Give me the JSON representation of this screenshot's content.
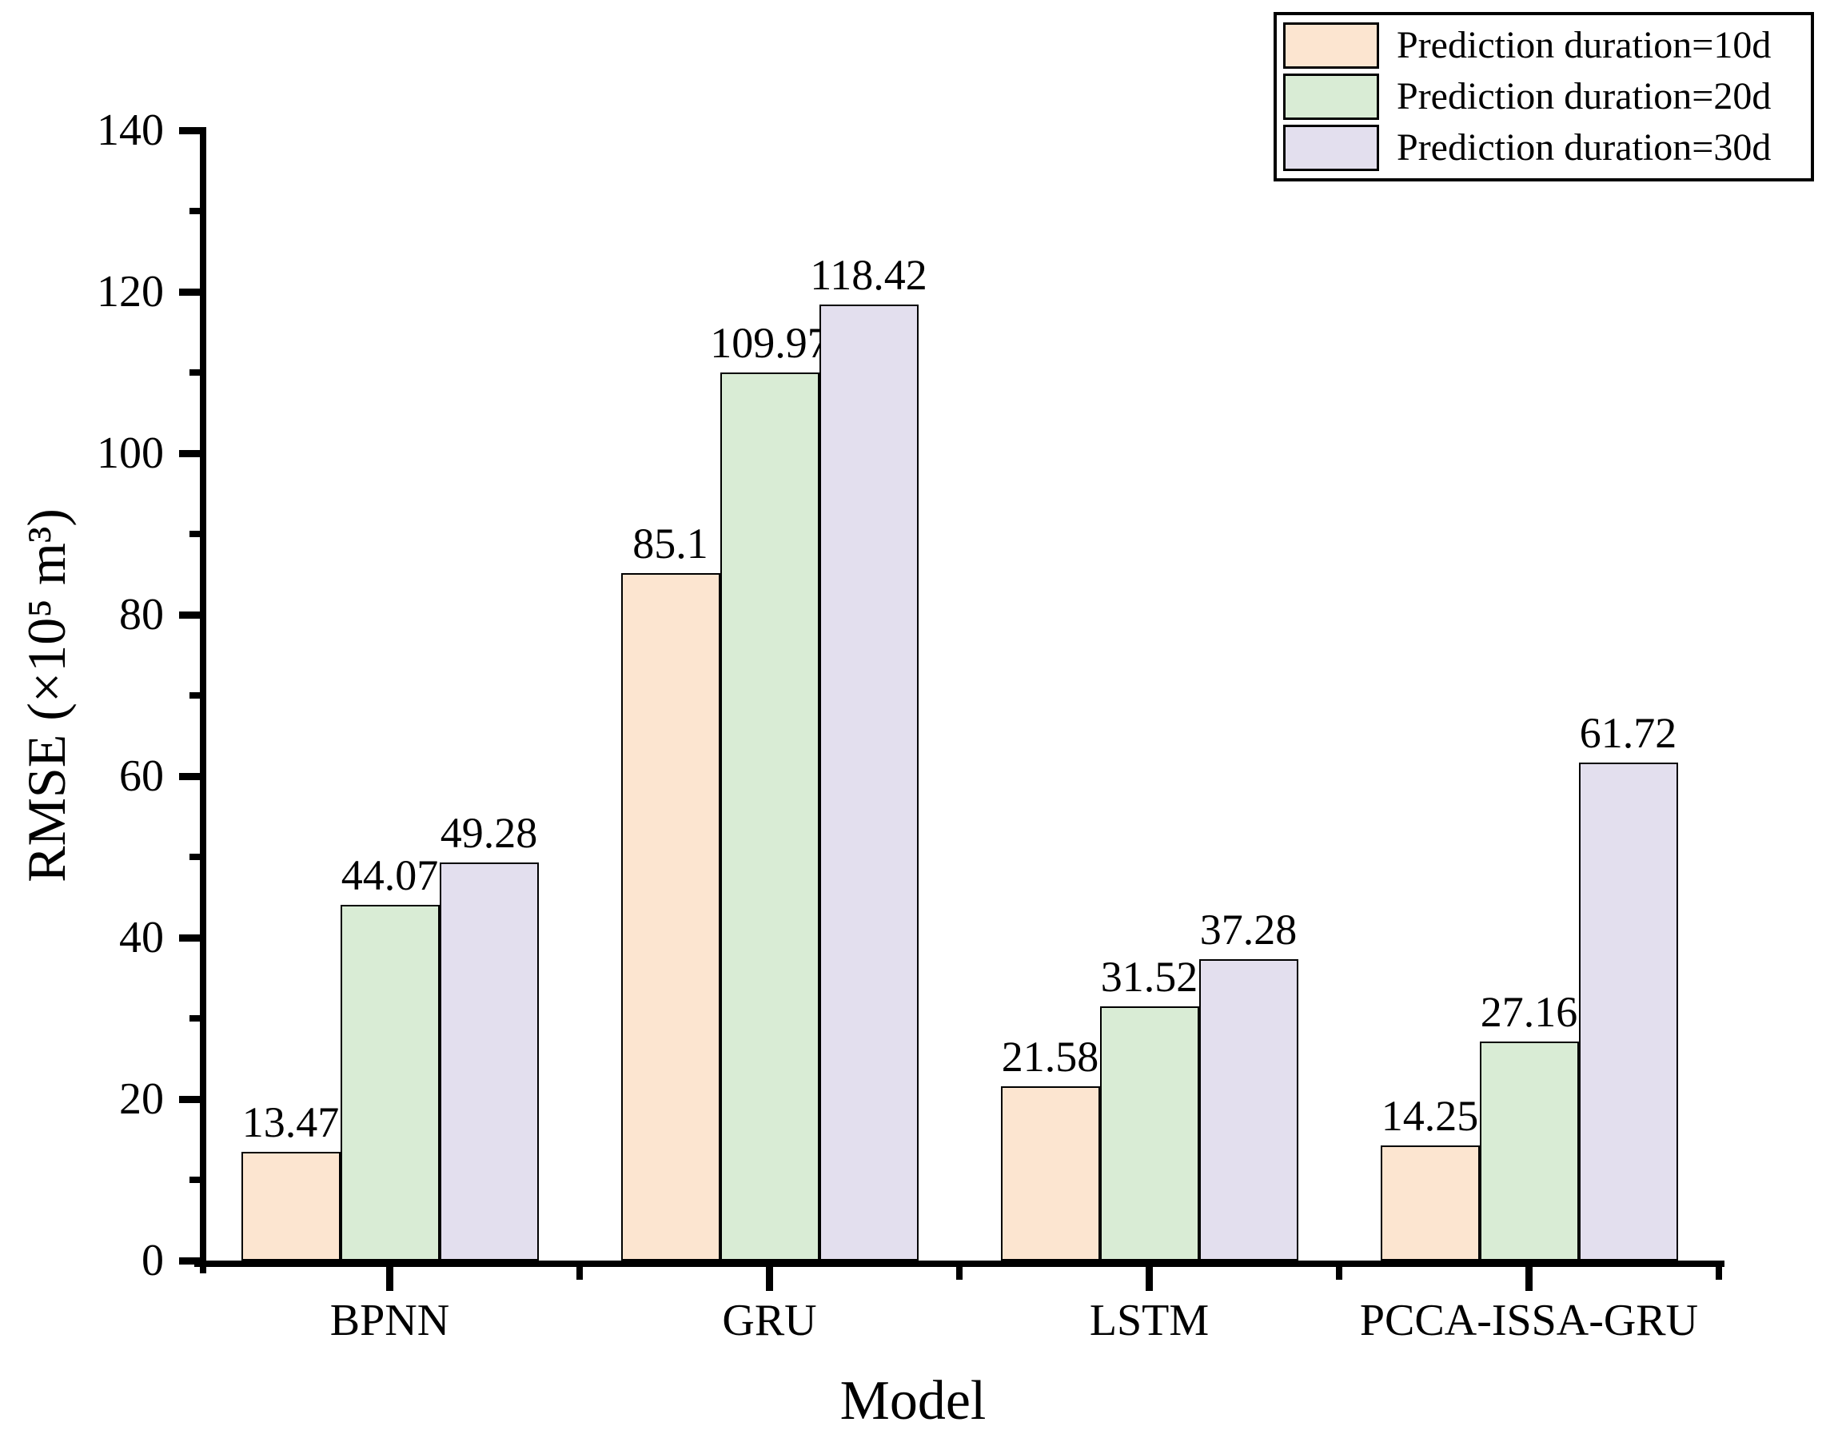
{
  "chart_data": {
    "type": "bar",
    "title": "",
    "xlabel": "Model",
    "ylabel": "RMSE (×10⁵ m³)",
    "categories": [
      "BPNN",
      "GRU",
      "LSTM",
      "PCCA-ISSA-GRU"
    ],
    "series": [
      {
        "name": "Prediction duration=10d",
        "color": "#fce5d0",
        "values": [
          13.47,
          85.1,
          21.58,
          14.25
        ],
        "value_labels": [
          "13.47",
          "85.1",
          "21.58",
          "14.25"
        ]
      },
      {
        "name": "Prediction duration=20d",
        "color": "#d9ecd5",
        "values": [
          44.07,
          109.97,
          31.52,
          27.16
        ],
        "value_labels": [
          "44.07",
          "109.97",
          "31.52",
          "27.16"
        ]
      },
      {
        "name": "Prediction duration=30d",
        "color": "#e3dfee",
        "values": [
          49.28,
          118.42,
          37.28,
          61.72
        ],
        "value_labels": [
          "49.28",
          "118.42",
          "37.28",
          "61.72"
        ]
      }
    ],
    "ylim": [
      0,
      140
    ],
    "yticks_major": [
      0,
      20,
      40,
      60,
      80,
      100,
      120,
      140
    ],
    "yticks_minor": [
      10,
      30,
      50,
      70,
      90,
      110,
      130
    ],
    "grid": false,
    "legend_position": "top-right",
    "styles": {
      "bar_edge": "#000000",
      "axis": "#000000",
      "text": "#000000",
      "background": "#ffffff",
      "legend_border": "#000000"
    }
  }
}
